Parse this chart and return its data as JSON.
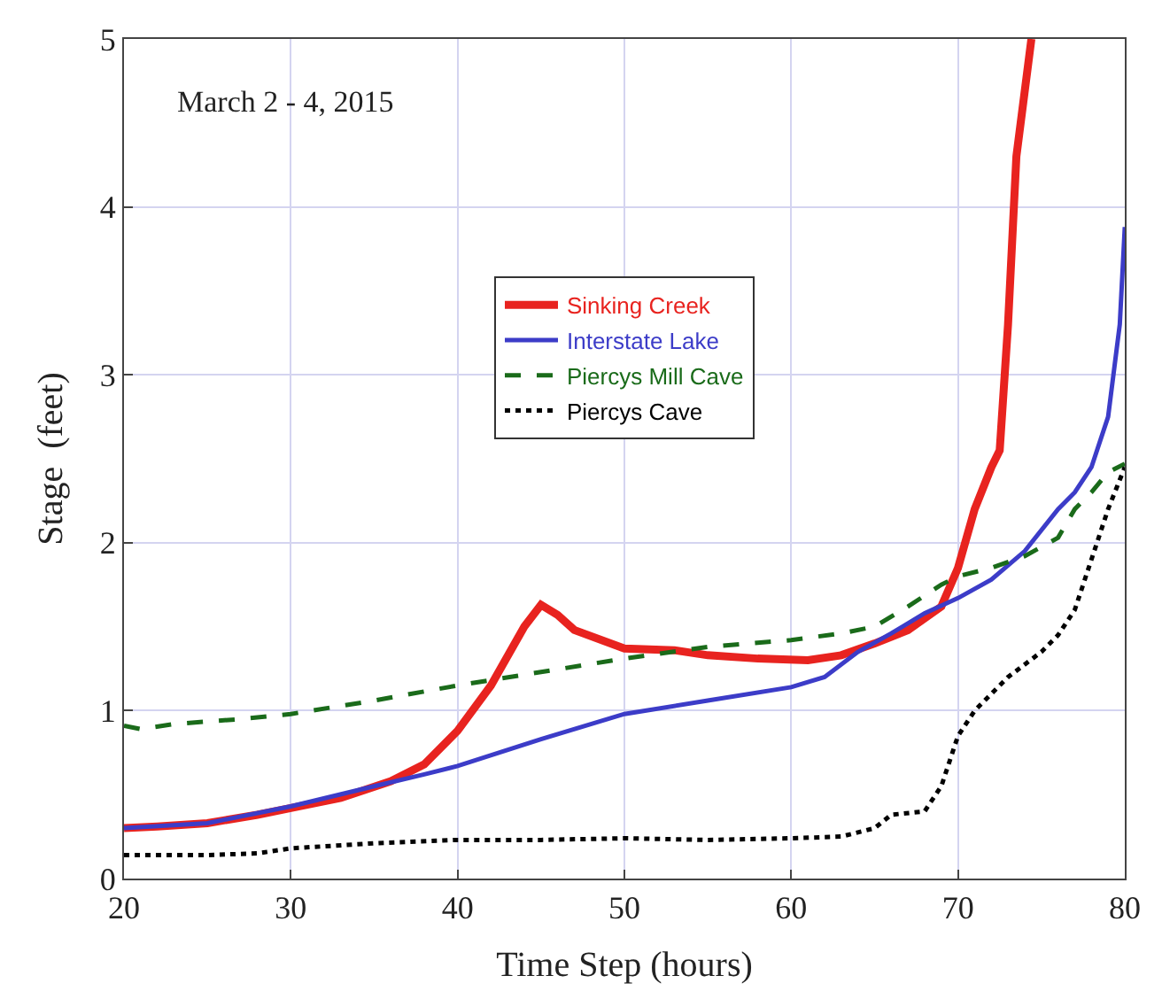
{
  "chart_data": {
    "type": "line",
    "xlabel": "Time Step (hours)",
    "ylabel": "Stage  (feet)",
    "annotations": [
      "March 2 - 4, 2015"
    ],
    "xlim": [
      20,
      80
    ],
    "xticks": [
      20,
      30,
      40,
      50,
      60,
      70,
      80
    ],
    "ylim": [
      0,
      5
    ],
    "yticks": [
      0,
      1,
      2,
      3,
      4,
      5
    ],
    "grid": true,
    "legend": "center",
    "marker": "none",
    "series": [
      {
        "name": "Sinking Creek",
        "color": "#e8231f",
        "line_style": "solid",
        "x": [
          20,
          22,
          25,
          28,
          30,
          33,
          36,
          38,
          40,
          42,
          44,
          45,
          46,
          47,
          50,
          53,
          55,
          58,
          61,
          63,
          65,
          67,
          69,
          70,
          71,
          72,
          72.5,
          73,
          73.5,
          74.4
        ],
        "values": [
          0.3,
          0.31,
          0.33,
          0.38,
          0.42,
          0.48,
          0.58,
          0.68,
          0.88,
          1.15,
          1.5,
          1.63,
          1.57,
          1.48,
          1.37,
          1.36,
          1.33,
          1.31,
          1.3,
          1.33,
          1.4,
          1.48,
          1.62,
          1.85,
          2.2,
          2.45,
          2.55,
          3.3,
          4.3,
          5.0
        ]
      },
      {
        "name": "Interstate Lake",
        "color": "#3c3cc8",
        "line_style": "solid",
        "x": [
          20,
          25,
          30,
          35,
          38,
          40,
          45,
          50,
          55,
          60,
          62,
          64,
          66,
          68,
          70,
          72,
          74,
          76,
          77,
          78,
          79,
          79.7,
          80
        ],
        "values": [
          0.3,
          0.33,
          0.43,
          0.55,
          0.62,
          0.67,
          0.83,
          0.98,
          1.06,
          1.14,
          1.2,
          1.35,
          1.46,
          1.58,
          1.67,
          1.78,
          1.95,
          2.2,
          2.3,
          2.45,
          2.75,
          3.3,
          3.88
        ]
      },
      {
        "name": "Piercys Mill Cave",
        "color": "#1a6b1a",
        "line_style": "dashed",
        "x": [
          20,
          21,
          23,
          27,
          30,
          35,
          40,
          45,
          50,
          55,
          60,
          63,
          65,
          67,
          69,
          70,
          72,
          74,
          76,
          77,
          78,
          79,
          80
        ],
        "values": [
          0.91,
          0.89,
          0.92,
          0.95,
          0.98,
          1.06,
          1.15,
          1.23,
          1.31,
          1.38,
          1.42,
          1.46,
          1.5,
          1.62,
          1.75,
          1.8,
          1.85,
          1.92,
          2.03,
          2.2,
          2.3,
          2.42,
          2.47
        ]
      },
      {
        "name": "Piercys Cave",
        "color": "#000000",
        "line_style": "dotted",
        "x": [
          20,
          25,
          28,
          30,
          35,
          40,
          45,
          50,
          55,
          60,
          63,
          65,
          66,
          68,
          69,
          70,
          71,
          73,
          75,
          76,
          77,
          78,
          79,
          80
        ],
        "values": [
          0.14,
          0.14,
          0.15,
          0.18,
          0.21,
          0.23,
          0.23,
          0.24,
          0.23,
          0.24,
          0.25,
          0.3,
          0.38,
          0.4,
          0.55,
          0.85,
          1.0,
          1.2,
          1.35,
          1.45,
          1.6,
          1.9,
          2.2,
          2.45
        ]
      }
    ]
  }
}
